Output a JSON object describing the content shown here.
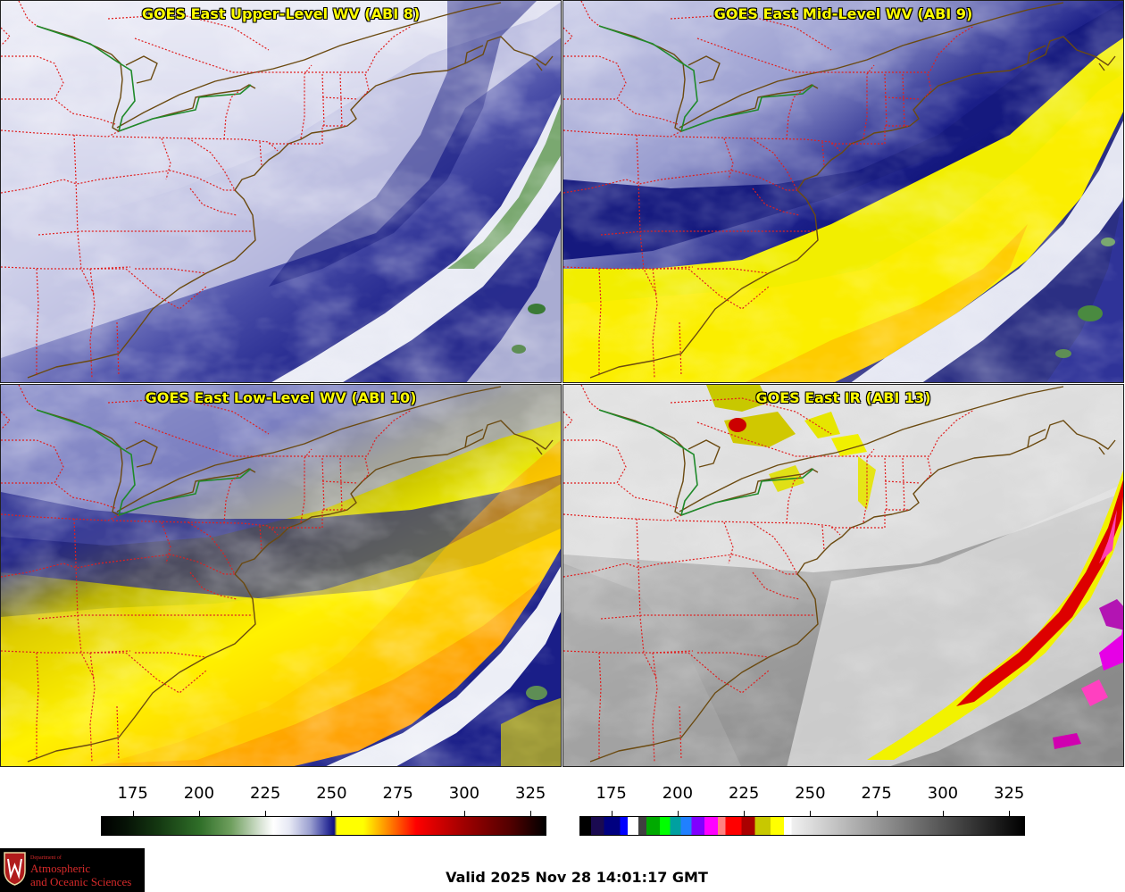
{
  "panels": [
    {
      "title": "GOES East Upper-Level WV (ABI 8)"
    },
    {
      "title": "GOES East Mid-Level WV (ABI 9)"
    },
    {
      "title": "GOES East Low-Level WV (ABI 10)"
    },
    {
      "title": "GOES East IR (ABI 13)"
    }
  ],
  "colorbars": [
    {
      "name": "water-vapor",
      "range": [
        163,
        331
      ],
      "ticks": [
        "175",
        "200",
        "225",
        "250",
        "275",
        "300",
        "325"
      ],
      "stops": [
        [
          163,
          "#000000"
        ],
        [
          172,
          "#061206"
        ],
        [
          185,
          "#153a12"
        ],
        [
          200,
          "#2f6e28"
        ],
        [
          212,
          "#6f9f5e"
        ],
        [
          224,
          "#dfe8dc"
        ],
        [
          228,
          "#ffffff"
        ],
        [
          234,
          "#e6e8f4"
        ],
        [
          242,
          "#9a9fd0"
        ],
        [
          248,
          "#3a3ea0"
        ],
        [
          251,
          "#101080"
        ],
        [
          252,
          "#ffff00"
        ],
        [
          262,
          "#ffff00"
        ],
        [
          272,
          "#ff8000"
        ],
        [
          282,
          "#ff0000"
        ],
        [
          300,
          "#a00000"
        ],
        [
          318,
          "#500000"
        ],
        [
          331,
          "#000000"
        ]
      ]
    },
    {
      "name": "infrared",
      "range": [
        163,
        331
      ],
      "ticks": [
        "175",
        "200",
        "225",
        "250",
        "275",
        "300",
        "325"
      ],
      "bands": [
        [
          163,
          167,
          "#000000"
        ],
        [
          167,
          172,
          "#1a0a50"
        ],
        [
          172,
          178,
          "#000080"
        ],
        [
          178,
          181,
          "#0000ff"
        ],
        [
          181,
          185,
          "#ffffff"
        ],
        [
          185,
          188,
          "#404040"
        ],
        [
          188,
          193,
          "#00aa00"
        ],
        [
          193,
          197,
          "#00ff00"
        ],
        [
          197,
          201,
          "#00a0a0"
        ],
        [
          201,
          205,
          "#2080ff"
        ],
        [
          205,
          210,
          "#8000ff"
        ],
        [
          210,
          215,
          "#ff00ff"
        ],
        [
          215,
          218,
          "#ff8080"
        ],
        [
          218,
          224,
          "#ff0000"
        ],
        [
          224,
          229,
          "#aa0000"
        ],
        [
          229,
          235,
          "#c8c800"
        ],
        [
          235,
          240,
          "#ffff00"
        ],
        [
          240,
          243,
          "#ffffff"
        ]
      ],
      "gray_from": 243
    }
  ],
  "footer": {
    "valid": "Valid 2025 Nov 28 14:01:17 GMT"
  },
  "logo": {
    "small": "Department of",
    "line1": "Atmospheric",
    "line2": "and Oceanic Sciences"
  }
}
